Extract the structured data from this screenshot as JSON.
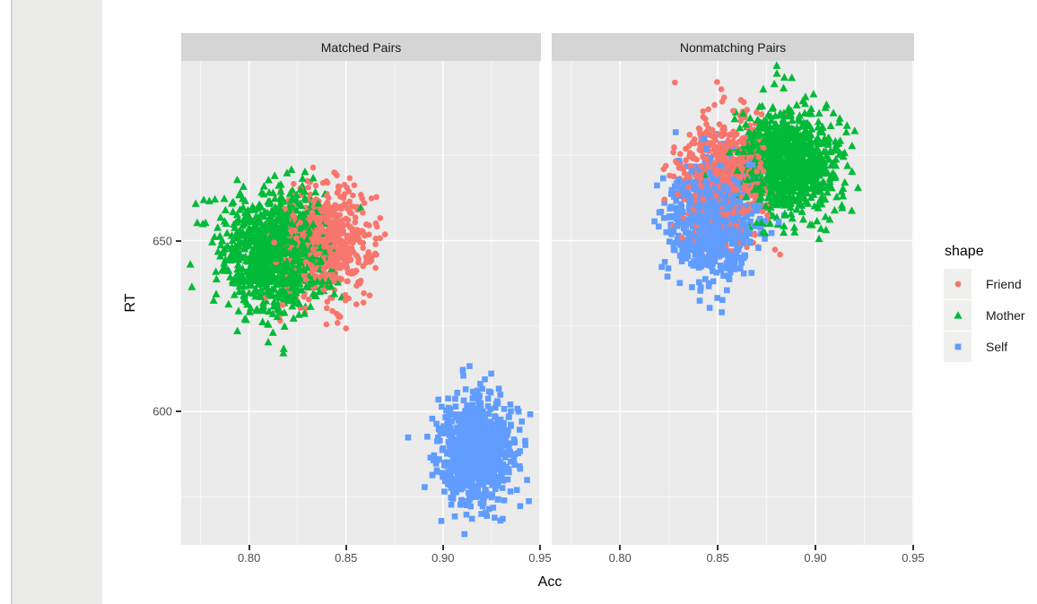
{
  "figure": {
    "background": "#ffffff",
    "left_band_color": "#ebebe9"
  },
  "chart_data": {
    "type": "scatter",
    "title": "",
    "xlabel": "Acc",
    "ylabel": "RT",
    "xlim": [
      0.765,
      0.9505
    ],
    "ylim": [
      561,
      702.6
    ],
    "grid": true,
    "x_ticks": [
      {
        "value": 0.8,
        "label": "0.80"
      },
      {
        "value": 0.85,
        "label": "0.85"
      },
      {
        "value": 0.9,
        "label": "0.90"
      },
      {
        "value": 0.95,
        "label": "0.95"
      }
    ],
    "x_minor": [
      0.775,
      0.825,
      0.875,
      0.925
    ],
    "y_ticks": [
      {
        "value": 650,
        "label": "650"
      },
      {
        "value": 600,
        "label": "600"
      }
    ],
    "y_minor": [
      575,
      625,
      675
    ],
    "legend": {
      "title": "shape",
      "position": "right",
      "entries": [
        {
          "label": "Friend",
          "shape": "circle",
          "color": "#F8766D"
        },
        {
          "label": "Mother",
          "shape": "triangle",
          "color": "#00BA38"
        },
        {
          "label": "Self",
          "shape": "square",
          "color": "#619CFF"
        }
      ]
    },
    "facets": [
      {
        "label": "Matched Pairs",
        "series": [
          {
            "name": "Friend",
            "shape": "circle",
            "color": "#F8766D",
            "mean": {
              "acc": 0.8395,
              "rt": 649.5
            },
            "sd": {
              "acc": 0.012,
              "rt": 8.0
            },
            "n": 650
          },
          {
            "name": "Mother",
            "shape": "triangle",
            "color": "#00BA38",
            "mean": {
              "acc": 0.814,
              "rt": 647.0
            },
            "sd": {
              "acc": 0.0139,
              "rt": 8.9
            },
            "n": 950
          },
          {
            "name": "Self",
            "shape": "square",
            "color": "#619CFF",
            "mean": {
              "acc": 0.9165,
              "rt": 588.5
            },
            "sd": {
              "acc": 0.0093,
              "rt": 7.6
            },
            "n": 850
          }
        ]
      },
      {
        "label": "Nonmatching Pairs",
        "series": [
          {
            "name": "Friend",
            "shape": "circle",
            "color": "#F8766D",
            "mean": {
              "acc": 0.8525,
              "rt": 669.0
            },
            "sd": {
              "acc": 0.011,
              "rt": 8.7
            },
            "n": 700
          },
          {
            "name": "Mother",
            "shape": "triangle",
            "color": "#00BA38",
            "mean": {
              "acc": 0.8855,
              "rt": 673.0
            },
            "sd": {
              "acc": 0.0119,
              "rt": 7.9
            },
            "n": 950
          },
          {
            "name": "Self",
            "shape": "square",
            "color": "#619CFF",
            "mean": {
              "acc": 0.8475,
              "rt": 656.5
            },
            "sd": {
              "acc": 0.01,
              "rt": 8.1
            },
            "n": 850
          }
        ]
      }
    ],
    "theme": {
      "panel_bg": "#EBEBEB",
      "strip_bg": "#D5D5D5",
      "grid_major": "#FFFFFF",
      "grid_minor": "rgba(255,255,255,0.6)",
      "tick_color": "#333333",
      "tick_label_color": "#4D4D4D",
      "strip_text_color": "#1A1A1A",
      "axis_title_color": "#000000",
      "legend_key_bg": "#F0F0EF",
      "legend_text_color": "#1A1A1A"
    }
  }
}
